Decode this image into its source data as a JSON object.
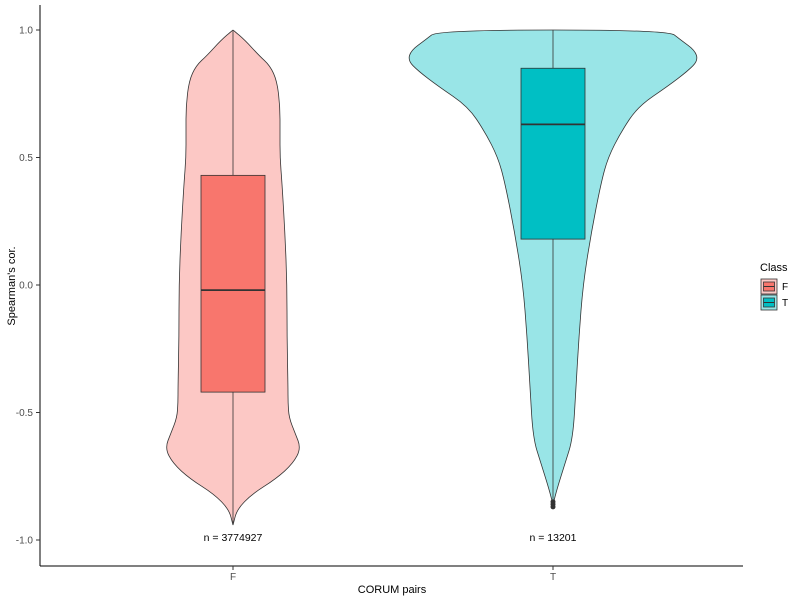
{
  "chart_data": {
    "type": "violin",
    "xlabel": "CORUM pairs",
    "ylabel": "Spearman's cor.",
    "ylim": [
      -1.1,
      1.1
    ],
    "yticks": [
      "1.0",
      "0.5",
      "0.0",
      "-0.5",
      "-1.0"
    ],
    "ytick_values": [
      1.0,
      0.5,
      0.0,
      -0.5,
      -1.0
    ],
    "categories": [
      "F",
      "T"
    ],
    "grid": false,
    "legend": {
      "title": "Class",
      "position": "right",
      "entries": [
        {
          "label": "F",
          "color": "#f8766d"
        },
        {
          "label": "T",
          "color": "#00bfc4"
        }
      ]
    },
    "series": [
      {
        "category": "F",
        "fill_violin": "#f8766d",
        "fill_box": "#f8766d",
        "box": {
          "lower_whisker": -0.94,
          "q1": -0.42,
          "median": -0.02,
          "q3": 0.43,
          "upper_whisker": 1.0
        },
        "violin_density": [
          [
            -0.94,
            0.1
          ],
          [
            -0.88,
            4
          ],
          [
            -0.82,
            19
          ],
          [
            -0.76,
            43
          ],
          [
            -0.7,
            60
          ],
          [
            -0.64,
            68
          ],
          [
            -0.58,
            62
          ],
          [
            -0.52,
            56
          ],
          [
            -0.46,
            55
          ],
          [
            -0.4,
            55
          ],
          [
            -0.2,
            54
          ],
          [
            0.0,
            54
          ],
          [
            0.2,
            52
          ],
          [
            0.4,
            49
          ],
          [
            0.5,
            47
          ],
          [
            0.6,
            47
          ],
          [
            0.7,
            47
          ],
          [
            0.8,
            44
          ],
          [
            0.86,
            37
          ],
          [
            0.9,
            26
          ],
          [
            0.96,
            12
          ],
          [
            1.0,
            0.1
          ]
        ],
        "annotation": "n = 3774927"
      },
      {
        "category": "T",
        "fill_violin": "#00bfc4",
        "fill_box": "#00bfc4",
        "box": {
          "lower_whisker": -0.84,
          "q1": 0.18,
          "median": 0.63,
          "q3": 0.85,
          "upper_whisker": 1.0
        },
        "outliers": [
          -0.85,
          -0.86,
          -0.87
        ],
        "violin_density": [
          [
            -0.86,
            0.1
          ],
          [
            -0.8,
            4
          ],
          [
            -0.7,
            12
          ],
          [
            -0.6,
            20
          ],
          [
            -0.4,
            23
          ],
          [
            -0.2,
            26
          ],
          [
            0.0,
            30
          ],
          [
            0.2,
            38
          ],
          [
            0.4,
            48
          ],
          [
            0.5,
            55
          ],
          [
            0.6,
            68
          ],
          [
            0.7,
            85
          ],
          [
            0.78,
            115
          ],
          [
            0.84,
            135
          ],
          [
            0.88,
            145
          ],
          [
            0.92,
            142
          ],
          [
            0.96,
            128
          ],
          [
            1.0,
            115
          ]
        ],
        "annotation": "n = 13201"
      }
    ]
  }
}
